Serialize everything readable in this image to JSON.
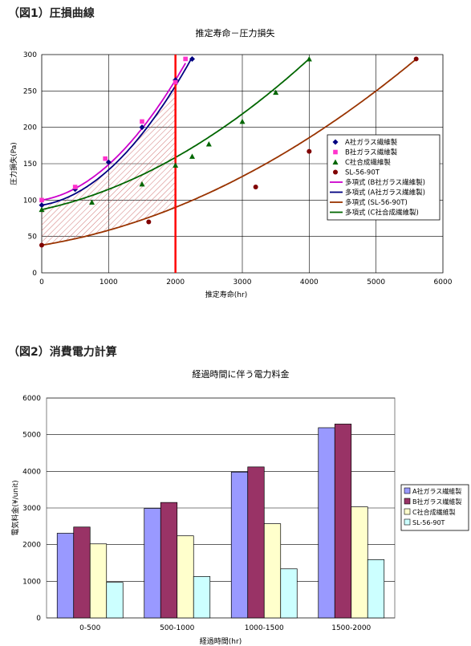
{
  "headings": {
    "fig1": "（図1）圧損曲線",
    "fig2": "（図2）消費電力計算"
  },
  "chart_data": [
    {
      "type": "scatter",
      "title": "推定寿命－圧力損失",
      "xlabel": "推定寿命(hr)",
      "ylabel": "圧力損失(Pa)",
      "xlim": [
        0,
        6000
      ],
      "ylim": [
        0,
        300
      ],
      "xticks": [
        0,
        1000,
        2000,
        3000,
        4000,
        5000,
        6000
      ],
      "yticks": [
        0,
        50,
        100,
        150,
        200,
        250,
        300
      ],
      "grid": true,
      "legend": "right",
      "vertical_line_x": 2000,
      "series": [
        {
          "name": "A社ガラス繊維製",
          "color": "#000080",
          "marker": "diamond",
          "x": [
            0,
            500,
            1000,
            1500,
            2000,
            2250
          ],
          "y": [
            93,
            115,
            152,
            200,
            265,
            294
          ]
        },
        {
          "name": "B社ガラス繊維製",
          "color": "#FF33CC",
          "marker": "square",
          "x": [
            0,
            500,
            950,
            1500,
            2000,
            2150
          ],
          "y": [
            100,
            118,
            157,
            208,
            262,
            294
          ]
        },
        {
          "name": "C社合成繊維製",
          "color": "#006600",
          "marker": "triangle",
          "x": [
            0,
            750,
            1500,
            2000,
            2250,
            2500,
            3000,
            3500,
            4000
          ],
          "y": [
            87,
            97,
            122,
            148,
            160,
            177,
            208,
            248,
            294
          ]
        },
        {
          "name": "SL-56-90T",
          "color": "#800000",
          "marker": "circle",
          "x": [
            0,
            1600,
            3200,
            4000,
            5600
          ],
          "y": [
            38,
            70,
            118,
            167,
            294
          ]
        }
      ],
      "trendlines": [
        {
          "name": "多項式 (B社ガラス繊維製)",
          "color": "#CC00CC",
          "coef": [
            100,
            0.0151,
            3.37e-05
          ],
          "xmax": 2150
        },
        {
          "name": "多項式 (A社ガラス繊維製)",
          "color": "#000080",
          "coef": [
            93,
            0.015,
            3.35e-05
          ],
          "xmax": 2250
        },
        {
          "name": "多項式 (SL-56-90T)",
          "color": "#993300",
          "coef": [
            38,
            0.0151,
            5.46e-06
          ],
          "xmax": 5600
        },
        {
          "name": "多項式 (C社合成繊維製)",
          "color": "#006600",
          "coef": [
            87,
            0.0198,
            8e-06
          ],
          "xmax": 4000
        }
      ]
    },
    {
      "type": "bar",
      "title": "経過時間に伴う電力料金",
      "xlabel": "経過時間(hr)",
      "ylabel": "電気料金(¥/unit)",
      "ylim": [
        0,
        6000
      ],
      "yticks": [
        0,
        1000,
        2000,
        3000,
        4000,
        5000,
        6000
      ],
      "grid": true,
      "legend": "right",
      "categories": [
        "0-500",
        "500-1000",
        "1000-1500",
        "1500-2000"
      ],
      "series": [
        {
          "name": "A社ガラス繊維製",
          "color": "#9999FF",
          "values": [
            2310,
            2990,
            3980,
            5190
          ]
        },
        {
          "name": "B社ガラス繊維製",
          "color": "#993366",
          "values": [
            2480,
            3150,
            4120,
            5290
          ]
        },
        {
          "name": "C社合成繊維製",
          "color": "#FFFFCC",
          "values": [
            2020,
            2240,
            2570,
            3030
          ]
        },
        {
          "name": "SL-56-90T",
          "color": "#CCFFFF",
          "values": [
            970,
            1130,
            1340,
            1590
          ]
        }
      ]
    }
  ]
}
